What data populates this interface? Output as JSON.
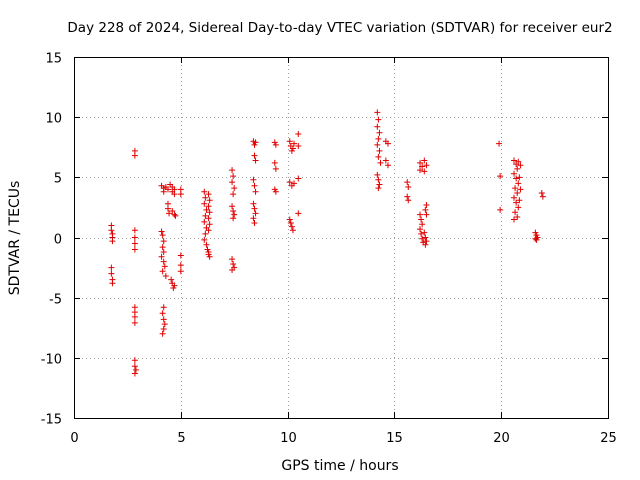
{
  "chart_data": {
    "type": "scatter",
    "title": "Day 228 of 2024, Sidereal Day-to-day VTEC variation (SDTVAR) for receiver eur2",
    "xlabel": "GPS time / hours",
    "ylabel": "SDTVAR / TECUs",
    "xlim": [
      0,
      25
    ],
    "ylim": [
      -15,
      15
    ],
    "xticks": [
      0,
      5,
      10,
      15,
      20,
      25
    ],
    "yticks": [
      -15,
      -10,
      -5,
      0,
      5,
      10,
      15
    ],
    "grid": true,
    "marker": "+",
    "color": "#e00000",
    "series": [
      {
        "name": "SDTVAR",
        "points": [
          [
            1.75,
            1.0
          ],
          [
            1.75,
            0.6
          ],
          [
            1.8,
            0.3
          ],
          [
            1.8,
            0.0
          ],
          [
            1.8,
            -0.3
          ],
          [
            1.75,
            -2.5
          ],
          [
            1.75,
            -3.0
          ],
          [
            1.8,
            -3.5
          ],
          [
            1.8,
            -3.8
          ],
          [
            2.85,
            7.2
          ],
          [
            2.85,
            6.8
          ],
          [
            2.85,
            0.6
          ],
          [
            2.85,
            0.0
          ],
          [
            2.85,
            -0.5
          ],
          [
            2.85,
            -1.0
          ],
          [
            2.85,
            -5.8
          ],
          [
            2.85,
            -6.2
          ],
          [
            2.85,
            -6.6
          ],
          [
            2.85,
            -7.1
          ],
          [
            2.85,
            -10.2
          ],
          [
            2.85,
            -10.7
          ],
          [
            2.9,
            -11.0
          ],
          [
            2.85,
            -11.3
          ],
          [
            4.1,
            4.3
          ],
          [
            4.2,
            4.1
          ],
          [
            4.3,
            4.2
          ],
          [
            4.4,
            4.0
          ],
          [
            4.2,
            3.8
          ],
          [
            4.1,
            0.5
          ],
          [
            4.15,
            0.2
          ],
          [
            4.2,
            -0.3
          ],
          [
            4.15,
            -0.8
          ],
          [
            4.2,
            -1.2
          ],
          [
            4.1,
            -1.6
          ],
          [
            4.2,
            -2.0
          ],
          [
            4.25,
            -2.4
          ],
          [
            4.15,
            -2.8
          ],
          [
            4.3,
            -3.2
          ],
          [
            4.2,
            -5.8
          ],
          [
            4.15,
            -6.3
          ],
          [
            4.2,
            -6.8
          ],
          [
            4.25,
            -7.2
          ],
          [
            4.2,
            -7.6
          ],
          [
            4.15,
            -8.0
          ],
          [
            4.4,
            2.8
          ],
          [
            4.4,
            2.4
          ],
          [
            4.45,
            2.0
          ],
          [
            4.5,
            4.4
          ],
          [
            4.6,
            4.2
          ],
          [
            4.7,
            4.0
          ],
          [
            4.6,
            3.8
          ],
          [
            4.7,
            3.6
          ],
          [
            4.55,
            -3.5
          ],
          [
            4.6,
            -3.8
          ],
          [
            4.7,
            -4.0
          ],
          [
            4.65,
            -4.2
          ],
          [
            4.6,
            2.2
          ],
          [
            4.7,
            1.9
          ],
          [
            4.75,
            1.8
          ],
          [
            5.0,
            4.0
          ],
          [
            5.0,
            3.6
          ],
          [
            5.0,
            -1.5
          ],
          [
            5.0,
            -2.3
          ],
          [
            5.0,
            -2.8
          ],
          [
            6.1,
            3.8
          ],
          [
            6.15,
            3.3
          ],
          [
            6.1,
            2.8
          ],
          [
            6.2,
            2.3
          ],
          [
            6.15,
            1.8
          ],
          [
            6.1,
            1.3
          ],
          [
            6.2,
            0.8
          ],
          [
            6.15,
            0.3
          ],
          [
            6.1,
            -0.2
          ],
          [
            6.2,
            -0.6
          ],
          [
            6.25,
            -1.0
          ],
          [
            6.3,
            -1.4
          ],
          [
            6.35,
            -1.6
          ],
          [
            6.3,
            -1.2
          ],
          [
            6.3,
            3.6
          ],
          [
            6.35,
            3.1
          ],
          [
            6.3,
            2.6
          ],
          [
            6.35,
            2.1
          ],
          [
            6.3,
            1.6
          ],
          [
            6.35,
            1.1
          ],
          [
            6.3,
            0.6
          ],
          [
            7.4,
            5.6
          ],
          [
            7.45,
            5.1
          ],
          [
            7.4,
            4.6
          ],
          [
            7.5,
            4.1
          ],
          [
            7.45,
            3.6
          ],
          [
            7.4,
            2.6
          ],
          [
            7.45,
            2.2
          ],
          [
            7.5,
            1.9
          ],
          [
            7.45,
            1.6
          ],
          [
            7.4,
            -1.8
          ],
          [
            7.45,
            -2.2
          ],
          [
            7.5,
            -2.5
          ],
          [
            7.4,
            -2.7
          ],
          [
            8.4,
            8.0
          ],
          [
            8.45,
            7.7
          ],
          [
            8.5,
            7.9
          ],
          [
            8.45,
            6.8
          ],
          [
            8.5,
            6.4
          ],
          [
            8.4,
            4.8
          ],
          [
            8.45,
            4.3
          ],
          [
            8.5,
            3.8
          ],
          [
            8.4,
            2.8
          ],
          [
            8.45,
            2.4
          ],
          [
            8.5,
            2.0
          ],
          [
            8.4,
            1.6
          ],
          [
            8.45,
            1.2
          ],
          [
            9.4,
            7.9
          ],
          [
            9.45,
            7.7
          ],
          [
            9.4,
            6.2
          ],
          [
            9.45,
            5.7
          ],
          [
            9.4,
            4.0
          ],
          [
            9.45,
            3.8
          ],
          [
            10.1,
            8.0
          ],
          [
            10.15,
            7.6
          ],
          [
            10.2,
            7.2
          ],
          [
            10.3,
            7.8
          ],
          [
            10.25,
            7.4
          ],
          [
            10.5,
            8.6
          ],
          [
            10.5,
            7.6
          ],
          [
            10.1,
            4.6
          ],
          [
            10.2,
            4.3
          ],
          [
            10.3,
            4.5
          ],
          [
            10.5,
            4.9
          ],
          [
            10.1,
            1.5
          ],
          [
            10.15,
            1.2
          ],
          [
            10.2,
            0.9
          ],
          [
            10.25,
            0.6
          ],
          [
            10.5,
            2.0
          ],
          [
            14.2,
            10.4
          ],
          [
            14.25,
            9.8
          ],
          [
            14.2,
            9.2
          ],
          [
            14.3,
            8.7
          ],
          [
            14.25,
            8.2
          ],
          [
            14.2,
            7.7
          ],
          [
            14.3,
            7.2
          ],
          [
            14.25,
            6.7
          ],
          [
            14.35,
            6.2
          ],
          [
            14.2,
            5.2
          ],
          [
            14.25,
            4.8
          ],
          [
            14.3,
            4.4
          ],
          [
            14.25,
            4.1
          ],
          [
            14.6,
            8.0
          ],
          [
            14.7,
            7.8
          ],
          [
            14.6,
            6.4
          ],
          [
            14.7,
            6.0
          ],
          [
            15.6,
            4.6
          ],
          [
            15.65,
            4.2
          ],
          [
            15.6,
            3.4
          ],
          [
            15.65,
            3.1
          ],
          [
            16.2,
            6.2
          ],
          [
            16.3,
            5.9
          ],
          [
            16.2,
            5.6
          ],
          [
            16.4,
            6.4
          ],
          [
            16.5,
            6.0
          ],
          [
            16.4,
            5.5
          ],
          [
            16.2,
            1.9
          ],
          [
            16.25,
            1.5
          ],
          [
            16.3,
            1.1
          ],
          [
            16.2,
            0.7
          ],
          [
            16.25,
            0.3
          ],
          [
            16.3,
            -0.1
          ],
          [
            16.35,
            -0.4
          ],
          [
            16.4,
            0.4
          ],
          [
            16.45,
            0.0
          ],
          [
            16.5,
            2.7
          ],
          [
            16.45,
            2.3
          ],
          [
            16.5,
            1.9
          ],
          [
            16.45,
            -0.6
          ],
          [
            16.5,
            -0.3
          ],
          [
            19.9,
            7.8
          ],
          [
            19.95,
            5.1
          ],
          [
            19.95,
            2.3
          ],
          [
            20.6,
            6.4
          ],
          [
            20.7,
            6.1
          ],
          [
            20.8,
            6.3
          ],
          [
            20.9,
            6.0
          ],
          [
            20.75,
            5.7
          ],
          [
            20.6,
            5.3
          ],
          [
            20.7,
            4.9
          ],
          [
            20.8,
            4.5
          ],
          [
            20.65,
            4.1
          ],
          [
            20.75,
            3.7
          ],
          [
            20.6,
            3.3
          ],
          [
            20.7,
            2.9
          ],
          [
            20.8,
            2.5
          ],
          [
            20.65,
            2.1
          ],
          [
            20.75,
            1.7
          ],
          [
            20.6,
            1.5
          ],
          [
            20.85,
            3.1
          ],
          [
            20.9,
            4.0
          ],
          [
            20.85,
            5.0
          ],
          [
            21.6,
            0.4
          ],
          [
            21.65,
            0.2
          ],
          [
            21.7,
            0.0
          ],
          [
            21.6,
            -0.1
          ],
          [
            21.65,
            -0.2
          ],
          [
            21.9,
            3.7
          ],
          [
            21.95,
            3.4
          ]
        ]
      }
    ]
  }
}
